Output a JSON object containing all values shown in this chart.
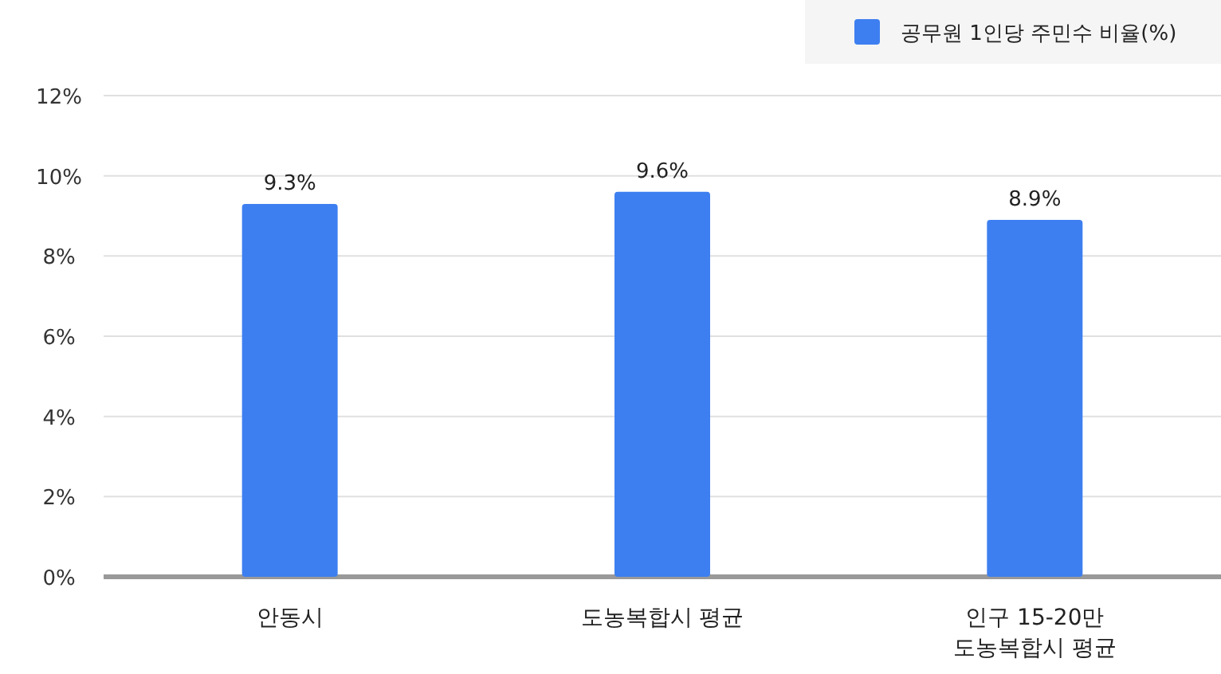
{
  "chart_data": {
    "type": "bar",
    "categories": [
      "안동시",
      "도농복합시 평균",
      "인구 15-20만\n도농복합시 평균"
    ],
    "series": [
      {
        "name": "공무원 1인당 주민수 비율(%)",
        "color": "#3d7ff0",
        "values": [
          9.3,
          9.6,
          8.9
        ],
        "value_labels": [
          "9.3%",
          "9.6%",
          "8.9%"
        ]
      }
    ],
    "ylim": [
      0,
      12
    ],
    "yticks": [
      {
        "value": 0,
        "label": "0%"
      },
      {
        "value": 2,
        "label": "2%"
      },
      {
        "value": 4,
        "label": "4%"
      },
      {
        "value": 6,
        "label": "6%"
      },
      {
        "value": 8,
        "label": "8%"
      },
      {
        "value": 10,
        "label": "10%"
      },
      {
        "value": 12,
        "label": "12%"
      }
    ],
    "grid": "y",
    "legend": "top right"
  }
}
